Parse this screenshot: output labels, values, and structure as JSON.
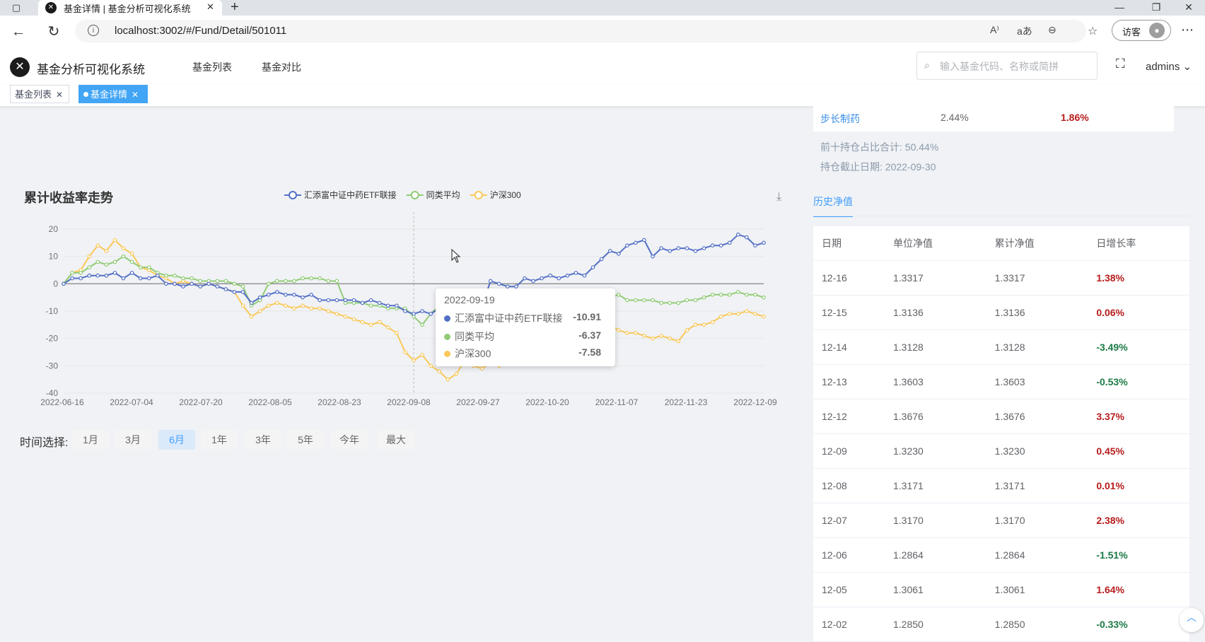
{
  "browser": {
    "tab_title": "基金详情 | 基金分析可视化系统",
    "url": "localhost:3002/#/Fund/Detail/501011",
    "guest_label": "访客"
  },
  "app": {
    "title": "基金分析可视化系统",
    "nav": [
      "基金列表",
      "基金对比"
    ],
    "search_placeholder": "输入基金代码、名称或简拼",
    "user": "admins"
  },
  "tags": [
    {
      "label": "基金列表",
      "active": false
    },
    {
      "label": "基金详情",
      "active": true
    }
  ],
  "holdings": {
    "row": {
      "name": "步长制药",
      "a": "2.44%",
      "b": "1.86%"
    },
    "top10_ratio": "前十持仓占比合计: 50.44%",
    "as_of": "持仓截止日期: 2022-09-30"
  },
  "history": {
    "tab": "历史净值",
    "headers": [
      "日期",
      "单位净值",
      "累计净值",
      "日增长率"
    ],
    "rows": [
      [
        "12-16",
        "1.3317",
        "1.3317",
        "1.38%"
      ],
      [
        "12-15",
        "1.3136",
        "1.3136",
        "0.06%"
      ],
      [
        "12-14",
        "1.3128",
        "1.3128",
        "-3.49%"
      ],
      [
        "12-13",
        "1.3603",
        "1.3603",
        "-0.53%"
      ],
      [
        "12-12",
        "1.3676",
        "1.3676",
        "3.37%"
      ],
      [
        "12-09",
        "1.3230",
        "1.3230",
        "0.45%"
      ],
      [
        "12-08",
        "1.3171",
        "1.3171",
        "0.01%"
      ],
      [
        "12-07",
        "1.3170",
        "1.3170",
        "2.38%"
      ],
      [
        "12-06",
        "1.2864",
        "1.2864",
        "-1.51%"
      ],
      [
        "12-05",
        "1.3061",
        "1.3061",
        "1.64%"
      ],
      [
        "12-02",
        "1.2850",
        "1.2850",
        "-0.33%"
      ]
    ],
    "up_color": "#b71c1c",
    "down_color": "#1b7a46"
  },
  "range_selector": {
    "label": "时间选择:",
    "options": [
      "1月",
      "3月",
      "6月",
      "1年",
      "3年",
      "5年",
      "今年",
      "最大"
    ],
    "active": "6月"
  },
  "tooltip": {
    "date": "2022-09-19",
    "items": [
      {
        "name": "汇添富中证中药ETF联接",
        "value": "-10.91",
        "color": "#5470c6"
      },
      {
        "name": "同类平均",
        "value": "-6.37",
        "color": "#91cc75"
      },
      {
        "name": "沪深300",
        "value": "-7.58",
        "color": "#fac858"
      }
    ]
  },
  "chart_data": {
    "type": "line",
    "title": "累计收益率走势",
    "ylim": [
      -40,
      20
    ],
    "yticks": [
      20,
      10,
      0,
      -10,
      -20,
      -30,
      -40
    ],
    "xticks": [
      "2022-06-16",
      "2022-07-04",
      "2022-07-20",
      "2022-08-05",
      "2022-08-23",
      "2022-09-08",
      "2022-09-27",
      "2022-10-20",
      "2022-11-07",
      "2022-11-23",
      "2022-12-09"
    ],
    "grid": true,
    "legend_position": "top-center",
    "series": [
      {
        "name": "汇添富中证中药ETF联接",
        "color": "#5470c6",
        "values": [
          0,
          2,
          2,
          3,
          3,
          3,
          4,
          2,
          4,
          2,
          2,
          3,
          0,
          0,
          -1,
          0,
          -1,
          0,
          -1,
          -2,
          -3,
          -3,
          -7,
          -5,
          -4,
          -3,
          -4,
          -4,
          -5,
          -4,
          -6,
          -6,
          -6,
          -6,
          -6,
          -7,
          -6,
          -7,
          -8,
          -8,
          -10,
          -11,
          -10,
          -11,
          -9,
          -9,
          -10,
          -8,
          -9,
          -8,
          1,
          0,
          -1,
          -1,
          2,
          1,
          2,
          3,
          2,
          3,
          4,
          3,
          6,
          9,
          12,
          11,
          14,
          15,
          16,
          10,
          13,
          12,
          13,
          13,
          12,
          13,
          14,
          14,
          15,
          18,
          17,
          14,
          15
        ]
      },
      {
        "name": "同类平均",
        "color": "#91cc75",
        "values": [
          0,
          4,
          4,
          6,
          8,
          7,
          8,
          10,
          8,
          6,
          6,
          4,
          3,
          3,
          2,
          2,
          1,
          1,
          1,
          1,
          0,
          -1,
          -8,
          -6,
          0,
          1,
          1,
          1,
          2,
          2,
          2,
          1,
          1,
          -7,
          -7,
          -7,
          -8,
          -8,
          -9,
          -9,
          -9,
          -12,
          -15,
          -11,
          -8,
          -8,
          -9,
          -9,
          -10,
          -10,
          -10,
          -8,
          -8,
          -8,
          -8,
          -7,
          -7,
          -7,
          -6,
          -6,
          -7,
          -6,
          -6,
          -5,
          -5,
          -4,
          -6,
          -6,
          -6,
          -6,
          -7,
          -7,
          -7,
          -6,
          -6,
          -5,
          -4,
          -4,
          -4,
          -3,
          -4,
          -4,
          -5
        ]
      },
      {
        "name": "沪深300",
        "color": "#fac858",
        "values": [
          0,
          4,
          5,
          10,
          14,
          12,
          16,
          13,
          11,
          6,
          5,
          3,
          2,
          0,
          1,
          0,
          -1,
          0,
          -1,
          -2,
          -3,
          -8,
          -12,
          -10,
          -8,
          -7,
          -8,
          -9,
          -8,
          -9,
          -9,
          -10,
          -11,
          -12,
          -13,
          -14,
          -15,
          -14,
          -16,
          -18,
          -25,
          -28,
          -26,
          -30,
          -32,
          -35,
          -33,
          -28,
          -30,
          -31,
          -29,
          -30,
          -28,
          -27,
          -26,
          -27,
          -24,
          -22,
          -20,
          -19,
          -18,
          -17,
          -16,
          -14,
          -15,
          -17,
          -18,
          -18,
          -19,
          -20,
          -19,
          -20,
          -21,
          -17,
          -15,
          -15,
          -14,
          -12,
          -11,
          -11,
          -10,
          -11,
          -12
        ]
      }
    ]
  }
}
